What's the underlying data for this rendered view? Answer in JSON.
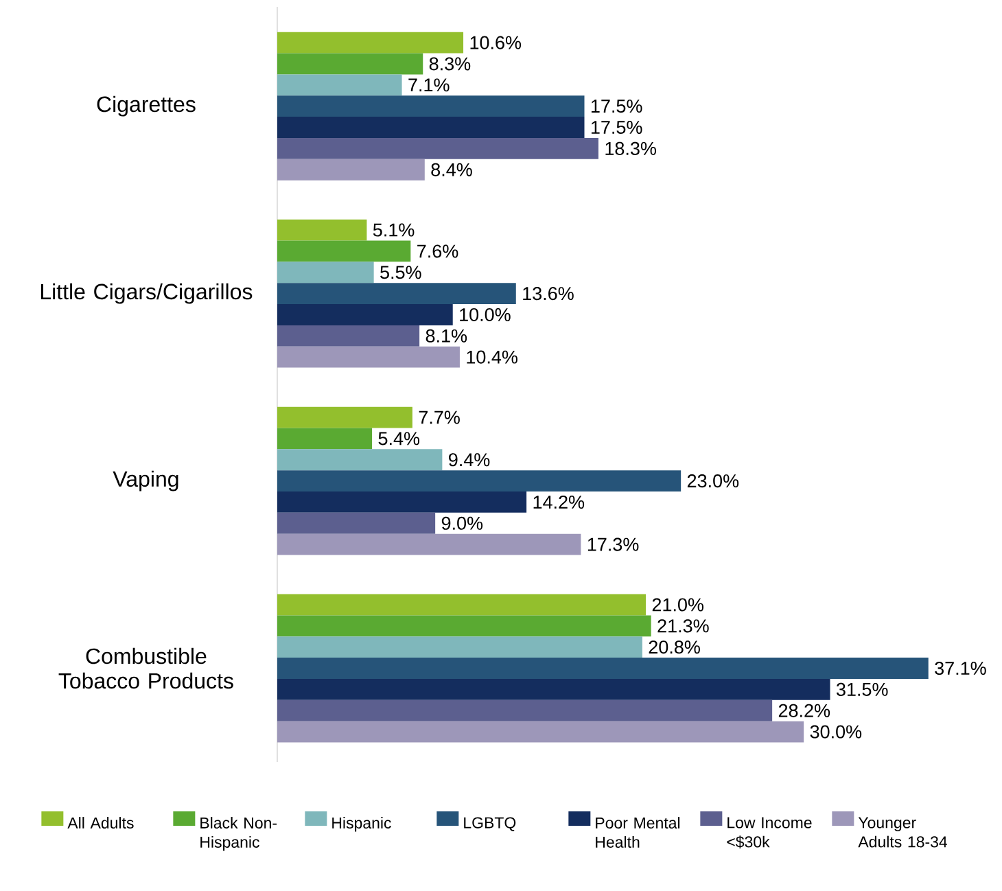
{
  "chart_data": {
    "type": "bar",
    "orientation": "horizontal",
    "legend": "bottom",
    "categories": [
      "Cigarettes",
      "Little Cigars/Cigarillos",
      "Vaping",
      "Combustible Tobacco Products"
    ],
    "series": [
      {
        "name": "All Adults",
        "color": "#93bf2d",
        "values": [
          10.6,
          5.1,
          7.7,
          21.0
        ],
        "value_labels": [
          "10.6%",
          "5.1%",
          "7.7%",
          "21.0%"
        ]
      },
      {
        "name": "Black Non-Hispanic",
        "color": "#5aaa32",
        "values": [
          8.3,
          7.6,
          5.4,
          21.3
        ],
        "value_labels": [
          "8.3%",
          "7.6%",
          "5.4%",
          "21.3%"
        ]
      },
      {
        "name": "Hispanic",
        "color": "#7fb7bb",
        "values": [
          7.1,
          5.5,
          9.4,
          20.8
        ],
        "value_labels": [
          "7.1%",
          "5.5%",
          "9.4%",
          "20.8%"
        ]
      },
      {
        "name": "LGBTQ",
        "color": "#265479",
        "values": [
          17.5,
          13.6,
          23.0,
          37.1
        ],
        "value_labels": [
          "17.5%",
          "13.6%",
          "23.0%",
          "37.1%"
        ]
      },
      {
        "name": "Poor Mental Health",
        "color": "#142d5e",
        "values": [
          17.5,
          10.0,
          14.2,
          31.5
        ],
        "value_labels": [
          "17.5%",
          "10.0%",
          "14.2%",
          "31.5%"
        ]
      },
      {
        "name": "Low Income <$30k",
        "color": "#5c5f8f",
        "values": [
          18.3,
          8.1,
          9.0,
          28.2
        ],
        "value_labels": [
          "18.3%",
          "8.1%",
          "9.0%",
          "28.2%"
        ]
      },
      {
        "name": "Younger Adults 18-34",
        "color": "#9d97b9",
        "values": [
          8.4,
          10.4,
          17.3,
          30.0
        ],
        "value_labels": [
          "8.4%",
          "10.4%",
          "17.3%",
          "30.0%"
        ]
      }
    ]
  }
}
